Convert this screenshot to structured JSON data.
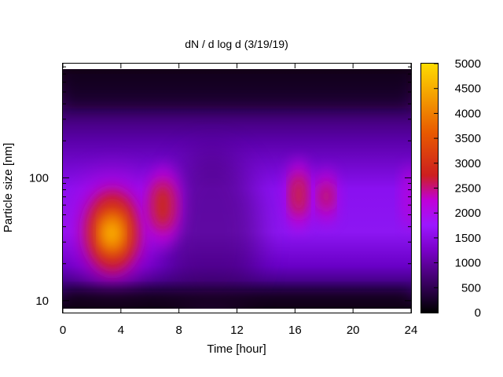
{
  "chart_data": {
    "type": "heatmap",
    "title": "dN / d log d (3/19/19)",
    "xlabel": "Time [hour]",
    "ylabel": "Particle size [nm]",
    "x_range": [
      0,
      24
    ],
    "x_ticks": [
      0,
      4,
      8,
      12,
      16,
      20,
      24
    ],
    "y_scale": "log",
    "y_range": [
      8,
      850
    ],
    "y_ticks": [
      10,
      100
    ],
    "colorbar": {
      "range": [
        0,
        5000
      ],
      "ticks": [
        0,
        500,
        1000,
        1500,
        2000,
        2500,
        3000,
        3500,
        4000,
        4500,
        5000
      ],
      "palette": [
        "#000000",
        "#3a0062",
        "#7a00c8",
        "#9c17ff",
        "#c000d8",
        "#cc1f1f",
        "#e85a00",
        "#ffdd00"
      ]
    },
    "grid": false,
    "features": [
      {
        "t_hour": 3.4,
        "d_nm": 36,
        "value": 4500
      },
      {
        "t_hour": 6.8,
        "d_nm": 55,
        "value": 2800
      },
      {
        "t_hour": 16.2,
        "d_nm": 75,
        "value": 2700
      },
      {
        "t_hour": 18.0,
        "d_nm": 75,
        "value": 2300
      },
      {
        "t_hour": 23.8,
        "d_nm": 80,
        "value": 2000
      }
    ]
  }
}
